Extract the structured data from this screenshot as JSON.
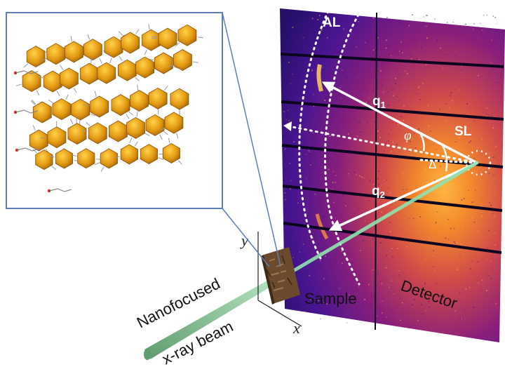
{
  "labels": {
    "al": "AL",
    "sl": "SL",
    "q1": "q",
    "q1_sub": "1",
    "q2": "q",
    "q2_sub": "2",
    "phi": "φ",
    "delta": "Δ",
    "axis_x": "x",
    "axis_y": "y",
    "sample": "Sample",
    "detector": "Detector",
    "beam_line1": "Nanofocused",
    "beam_line2": "x-ray beam"
  },
  "colors": {
    "detector_dark": "#2a0a6e",
    "detector_mid": "#8a1f7a",
    "detector_hot": "#f39a2a",
    "beam": "#7fd6a8",
    "inset_border": "#5c7fb5",
    "nanocrystal": "#e8a317",
    "sample": "#6b4a2e"
  }
}
